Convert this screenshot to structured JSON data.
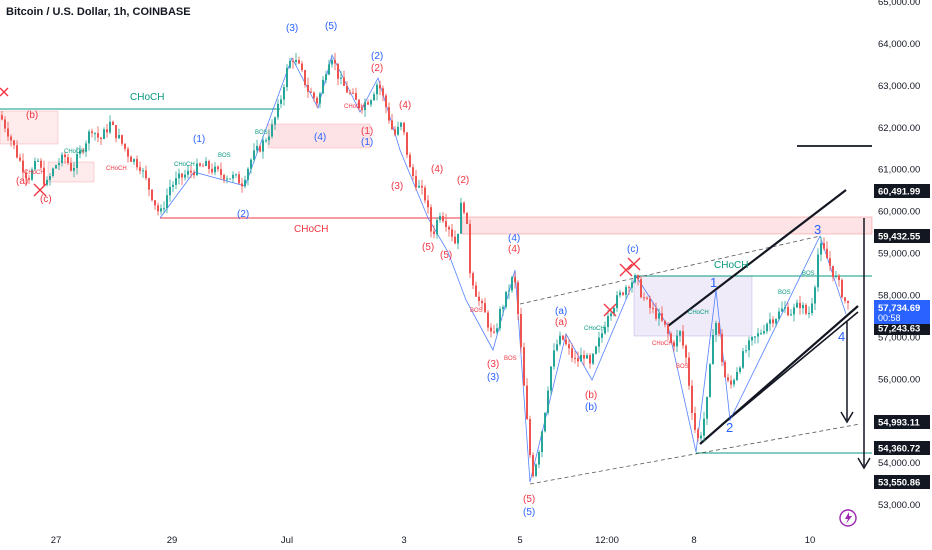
{
  "header": {
    "title": "Bitcoin / U.S. Dollar, 1h, COINBASE"
  },
  "chart_data": {
    "type": "candlestick",
    "title": "Bitcoin / U.S. Dollar, 1h, COINBASE",
    "x_tick_labels": [
      "27",
      "29",
      "Jul",
      "3",
      "5",
      "12:00",
      "8",
      "10"
    ],
    "y_tick_labels": [
      "53,000.00",
      "54,000.00",
      "55,000.00",
      "56,000.00",
      "57,000.00",
      "58,000.00",
      "59,000.00",
      "60,000.00",
      "61,000.00",
      "62,000.00",
      "63,000.00",
      "64,000.00",
      "65,000.00"
    ],
    "ylim": [
      52700,
      65000
    ],
    "price_path": [
      [
        0,
        62300
      ],
      [
        8,
        61900
      ],
      [
        18,
        61300
      ],
      [
        28,
        60800
      ],
      [
        38,
        61200
      ],
      [
        46,
        60600
      ],
      [
        55,
        61100
      ],
      [
        65,
        61300
      ],
      [
        72,
        61000
      ],
      [
        82,
        61500
      ],
      [
        92,
        62000
      ],
      [
        100,
        61700
      ],
      [
        110,
        62100
      ],
      [
        120,
        61700
      ],
      [
        130,
        61300
      ],
      [
        140,
        61100
      ],
      [
        150,
        60500
      ],
      [
        160,
        59900
      ],
      [
        170,
        60600
      ],
      [
        180,
        60800
      ],
      [
        195,
        61000
      ],
      [
        205,
        61100
      ],
      [
        220,
        60900
      ],
      [
        235,
        60800
      ],
      [
        242,
        60700
      ],
      [
        252,
        61300
      ],
      [
        262,
        61600
      ],
      [
        272,
        62000
      ],
      [
        280,
        62600
      ],
      [
        286,
        63300
      ],
      [
        292,
        63700
      ],
      [
        300,
        63400
      ],
      [
        308,
        62900
      ],
      [
        318,
        62600
      ],
      [
        326,
        63400
      ],
      [
        331,
        63800
      ],
      [
        340,
        63100
      ],
      [
        350,
        62800
      ],
      [
        360,
        62500
      ],
      [
        370,
        62700
      ],
      [
        378,
        63100
      ],
      [
        386,
        62500
      ],
      [
        394,
        61800
      ],
      [
        402,
        62100
      ],
      [
        410,
        61000
      ],
      [
        418,
        60600
      ],
      [
        426,
        60300
      ],
      [
        432,
        59400
      ],
      [
        440,
        60000
      ],
      [
        450,
        59600
      ],
      [
        456,
        59200
      ],
      [
        462,
        60300
      ],
      [
        466,
        59900
      ],
      [
        470,
        58600
      ],
      [
        478,
        57900
      ],
      [
        486,
        57500
      ],
      [
        493,
        56900
      ],
      [
        500,
        57600
      ],
      [
        508,
        58100
      ],
      [
        514,
        58500
      ],
      [
        519,
        57300
      ],
      [
        524,
        55800
      ],
      [
        528,
        54700
      ],
      [
        532,
        53700
      ],
      [
        538,
        54200
      ],
      [
        544,
        55100
      ],
      [
        550,
        56200
      ],
      [
        556,
        56800
      ],
      [
        562,
        57000
      ],
      [
        568,
        56700
      ],
      [
        576,
        56400
      ],
      [
        584,
        56600
      ],
      [
        590,
        56300
      ],
      [
        596,
        56700
      ],
      [
        602,
        57100
      ],
      [
        608,
        57600
      ],
      [
        614,
        57800
      ],
      [
        620,
        58000
      ],
      [
        628,
        58300
      ],
      [
        636,
        58400
      ],
      [
        642,
        58000
      ],
      [
        650,
        57700
      ],
      [
        658,
        57500
      ],
      [
        666,
        57200
      ],
      [
        672,
        56800
      ],
      [
        680,
        57100
      ],
      [
        686,
        56500
      ],
      [
        692,
        55300
      ],
      [
        697,
        54500
      ],
      [
        702,
        54800
      ],
      [
        708,
        55600
      ],
      [
        714,
        57500
      ],
      [
        718,
        57200
      ],
      [
        724,
        56100
      ],
      [
        730,
        55800
      ],
      [
        738,
        56300
      ],
      [
        746,
        56700
      ],
      [
        752,
        56900
      ],
      [
        760,
        57100
      ],
      [
        768,
        57400
      ],
      [
        776,
        57500
      ],
      [
        784,
        57700
      ],
      [
        792,
        57600
      ],
      [
        800,
        57800
      ],
      [
        808,
        57500
      ],
      [
        814,
        58100
      ],
      [
        819,
        59200
      ],
      [
        825,
        59000
      ],
      [
        832,
        58600
      ],
      [
        840,
        58200
      ],
      [
        846,
        57800
      ],
      [
        850,
        57735
      ]
    ],
    "current_price": "57,734.69",
    "countdown": "00:58",
    "price_badges": [
      "60,491.99",
      "59,432.55",
      "57,243.63",
      "54,993.11",
      "54,360.72",
      "53,550.86"
    ],
    "legend_position": "none",
    "grid": false
  },
  "annotations": {
    "choch": "CHoCH",
    "bos": "BOS",
    "labels": {
      "w1": "(1)",
      "w2": "(2)",
      "w3": "(3)",
      "w4": "(4)",
      "w5": "(5)",
      "wa": "(a)",
      "wb": "(b)",
      "wc": "(c)",
      "a": "(a)",
      "b": "(b)",
      "c": "(c)",
      "n1": "1",
      "n2": "2",
      "n3": "3",
      "n4": "4"
    }
  },
  "colors": {
    "up": "#26a69a",
    "down": "#ef5350",
    "blue": "#2962ff",
    "red": "#f23645",
    "green": "#089981",
    "badge_bg": "#131722",
    "current_bg": "#2962ff"
  }
}
